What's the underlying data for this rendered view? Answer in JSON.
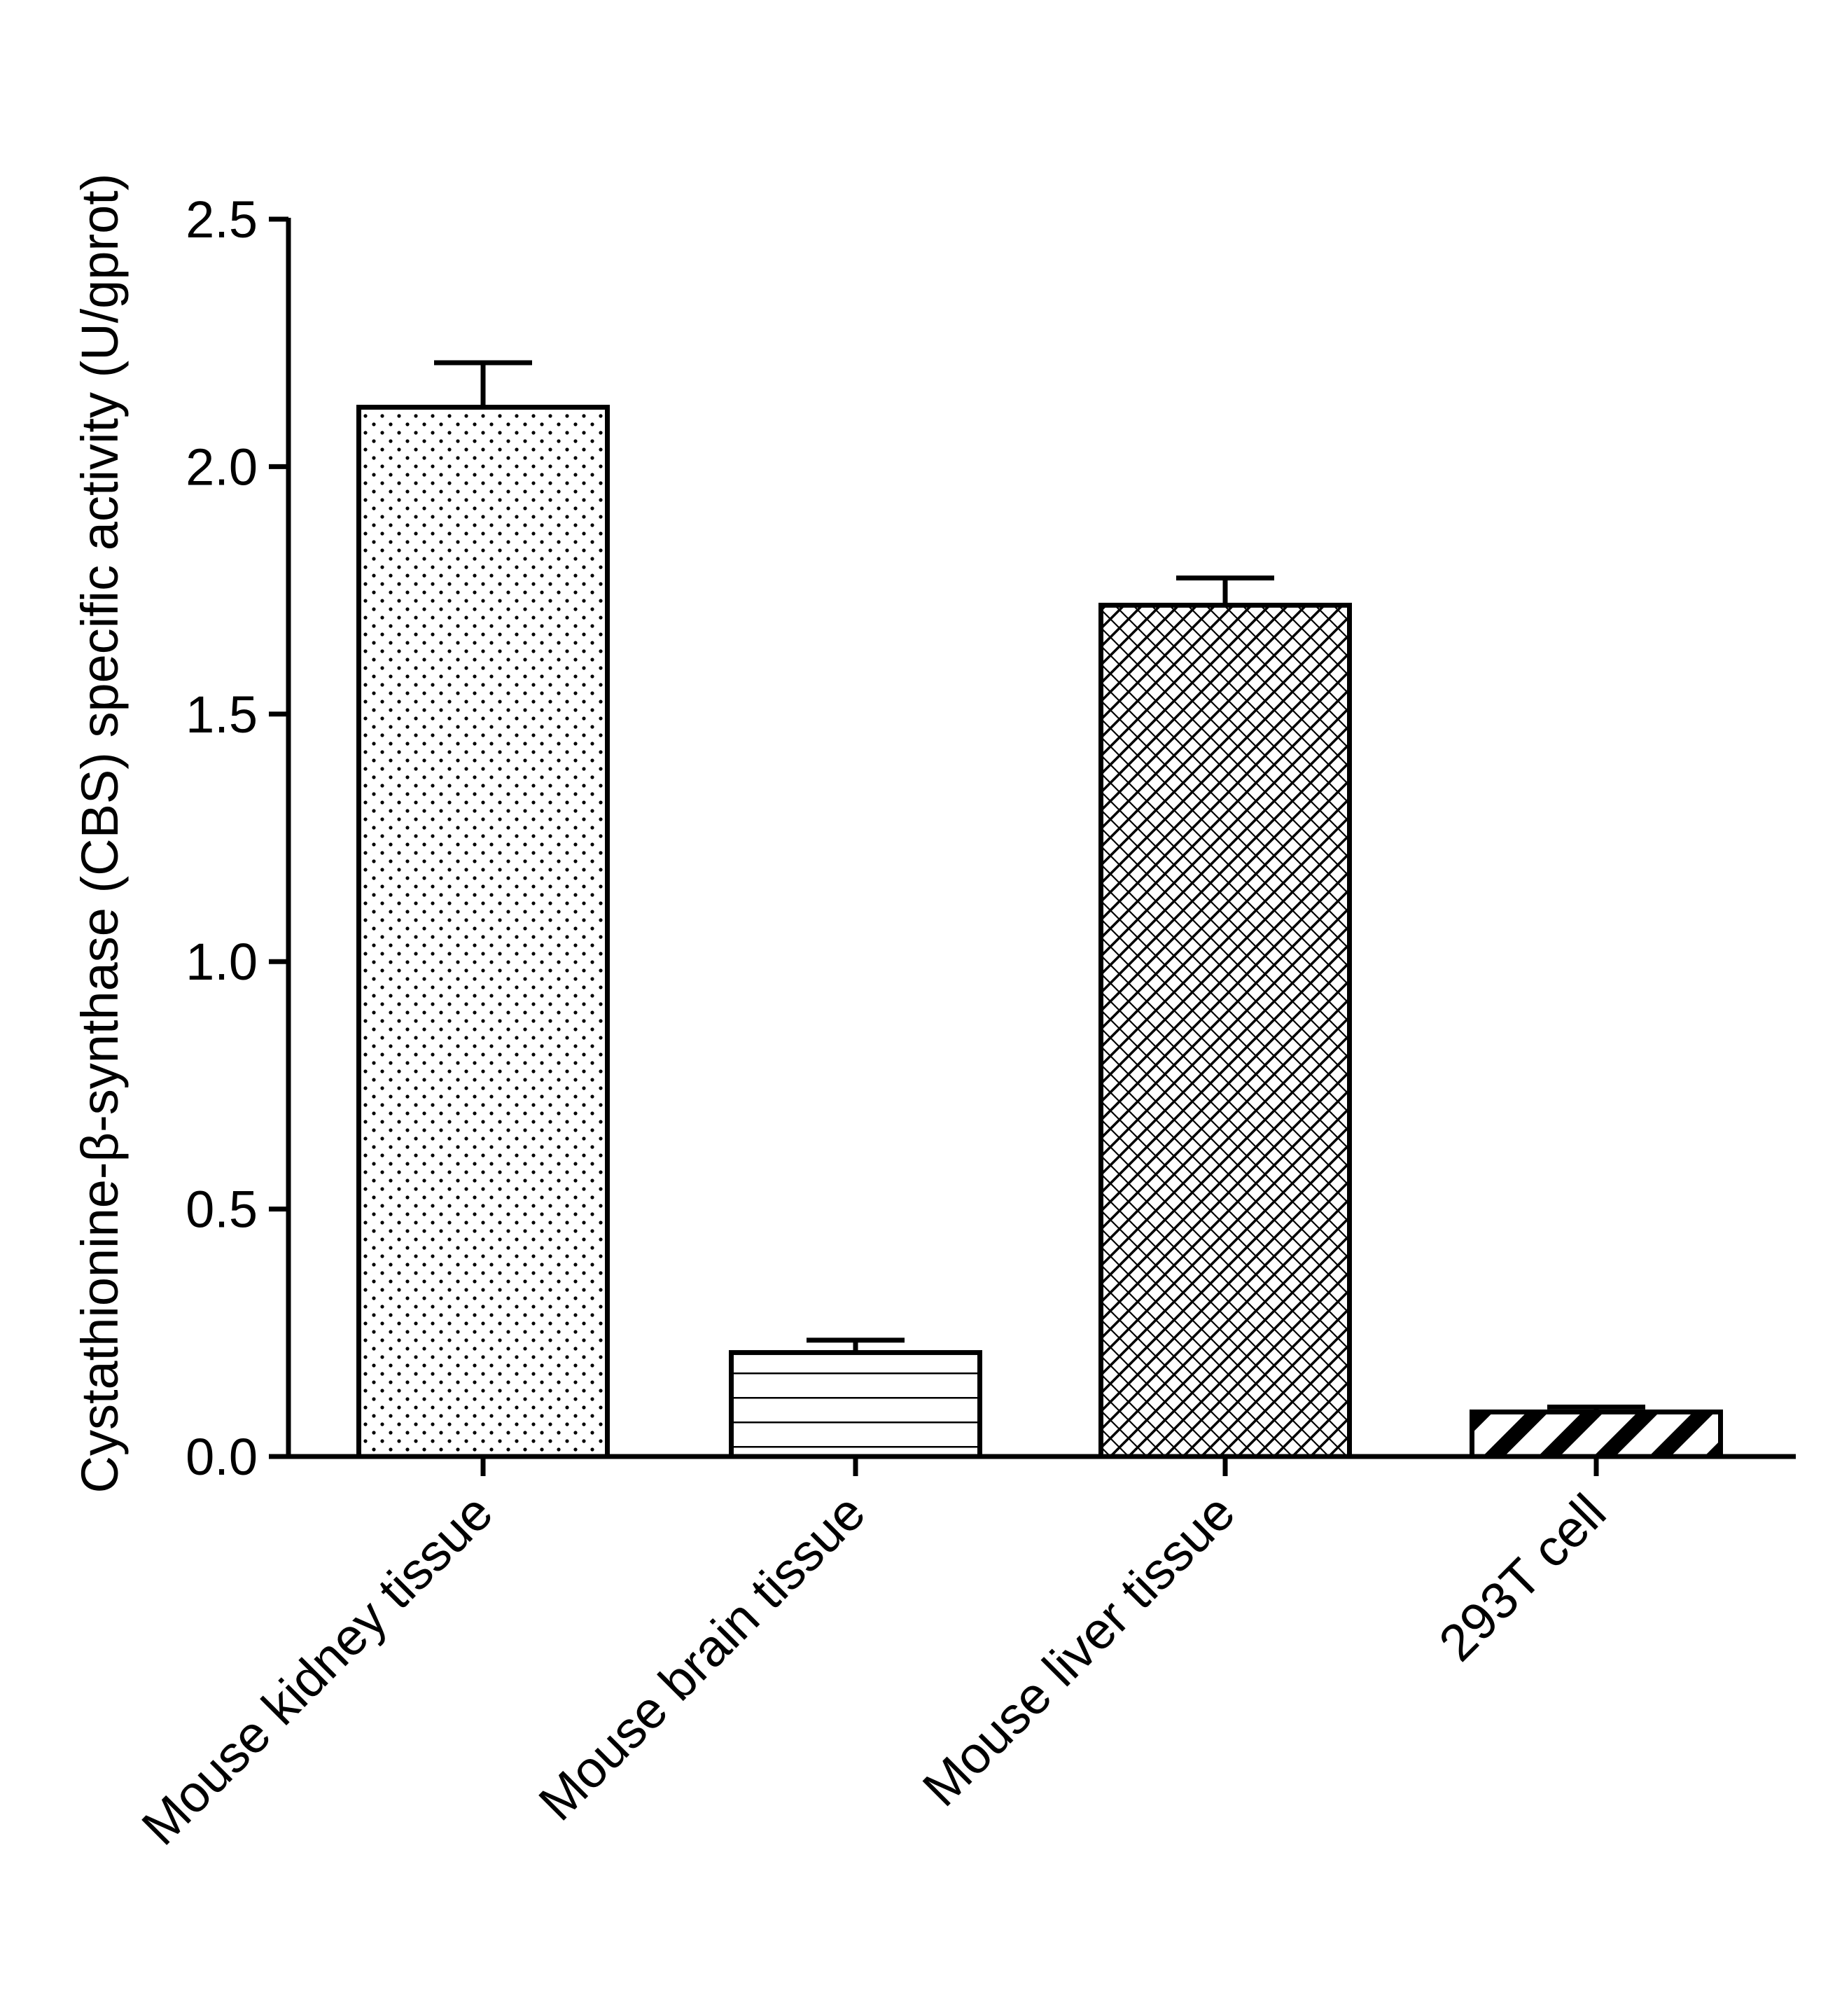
{
  "chart_data": {
    "type": "bar",
    "title": "",
    "xlabel": "",
    "ylabel": "Cystathionine-β-synthase (CBS) specific activity (U/gprot)",
    "ylim": [
      0,
      2.5
    ],
    "yticks": [
      "0.0",
      "0.5",
      "1.0",
      "1.5",
      "2.0",
      "2.5"
    ],
    "categories": [
      "Mouse kidney tissue",
      "Mouse brain tissue",
      "Mouse liver tissue",
      "293T cell"
    ],
    "values": [
      2.12,
      0.21,
      1.72,
      0.09
    ],
    "errors": [
      0.09,
      0.025,
      0.055,
      0.01
    ],
    "patterns": [
      "dots",
      "horizontal-lines",
      "crosshatch",
      "diagonal-stripes"
    ],
    "grid": false,
    "legend": "none",
    "bar_fill": "#ffffff",
    "stroke_color": "#000000"
  }
}
